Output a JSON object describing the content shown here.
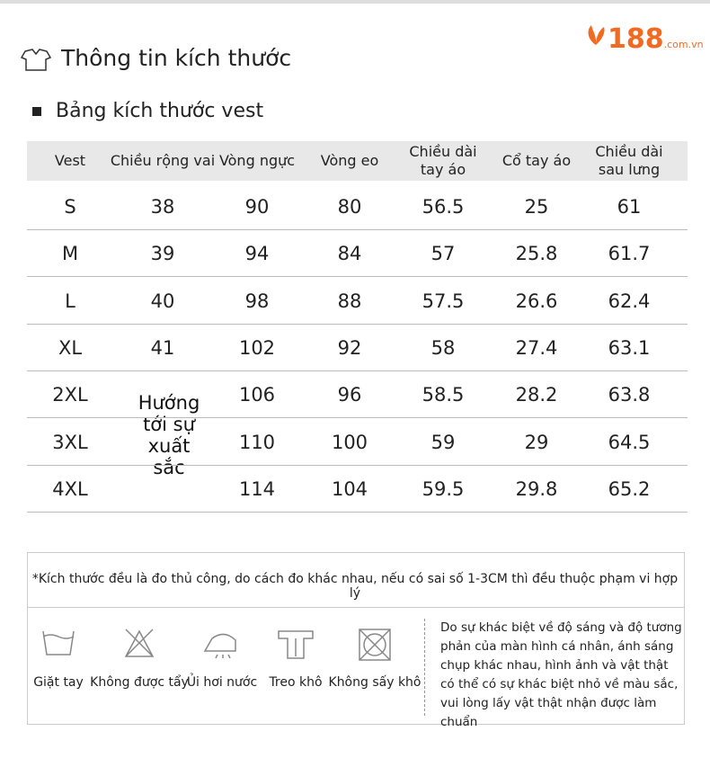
{
  "header": {
    "title": "Thông tin kích thước",
    "logo": "188",
    "logo_domain": ".com.vn"
  },
  "section_title": "Bảng kích thước vest",
  "table": {
    "columns": [
      "Vest",
      "Chiều rộng vai",
      "Vòng ngực",
      "Vòng eo",
      "Chiều dài tay áo",
      "Cổ tay áo",
      "Chiều dài sau lưng"
    ],
    "rows": [
      [
        "S",
        "38",
        "90",
        "80",
        "56.5",
        "25",
        "61"
      ],
      [
        "M",
        "39",
        "94",
        "84",
        "57",
        "25.8",
        "61.7"
      ],
      [
        "L",
        "40",
        "98",
        "88",
        "57.5",
        "26.6",
        "62.4"
      ],
      [
        "XL",
        "41",
        "102",
        "92",
        "58",
        "27.4",
        "63.1"
      ],
      [
        "2XL",
        null,
        "106",
        "96",
        "58.5",
        "28.2",
        "63.8"
      ],
      [
        "3XL",
        null,
        "110",
        "100",
        "59",
        "29",
        "64.5"
      ],
      [
        "4XL",
        null,
        "114",
        "104",
        "59.5",
        "29.8",
        "65.2"
      ]
    ]
  },
  "overlay_text": "Hướng tới sự xuất sắc",
  "note": "*Kích thước đều là đo thủ công, do cách đo khác nhau, nếu có sai số 1-3CM thì đều thuộc phạm vi hợp lý",
  "care_labels": [
    "Giặt tay",
    "Không được tẩy",
    "Ủi hơi nước",
    "Treo khô",
    "Không sấy khô"
  ],
  "disclaimer": "Do sự khác biệt về độ sáng và độ tương phản của màn hình cá nhân, ánh sáng chụp khác nhau, hình ảnh và vật thật có thể có sự khác biệt nhỏ về màu sắc, vui lòng lấy vật thật nhận được làm chuẩn"
}
